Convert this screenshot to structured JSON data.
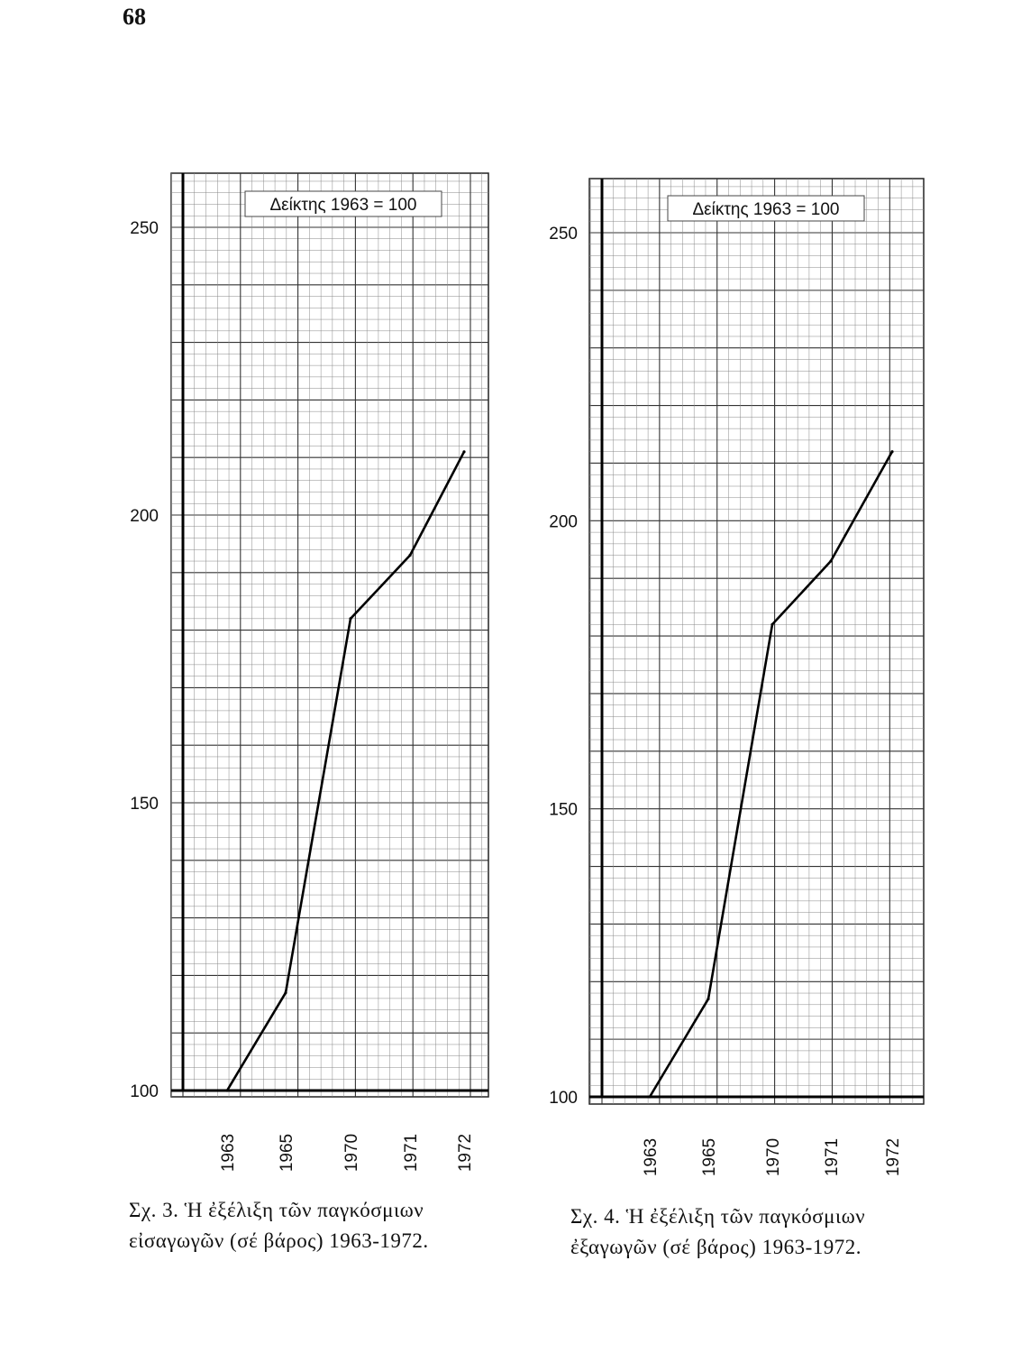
{
  "page_number": "68",
  "chart_data": [
    {
      "type": "line",
      "annotation": "Δείκτης 1963 = 100",
      "x": [
        "1963",
        "1965",
        "1970",
        "1971",
        "1972"
      ],
      "series": [
        {
          "values": [
            100,
            117,
            182,
            193,
            211
          ]
        }
      ],
      "ylim": [
        100,
        260
      ],
      "y_ticks": [
        100,
        150,
        200,
        250
      ],
      "grid": true,
      "caption_lines": [
        "Σχ. 3. Ἡ ἐξέλιξη τῶν παγκόσμιων",
        "εἰσαγωγῶν (σέ βάρος) 1963-1972."
      ]
    },
    {
      "type": "line",
      "annotation": "Δείκτης 1963 = 100",
      "x": [
        "1963",
        "1965",
        "1970",
        "1971",
        "1972"
      ],
      "series": [
        {
          "values": [
            100,
            117,
            182,
            193,
            212
          ]
        }
      ],
      "ylim": [
        100,
        260
      ],
      "y_ticks": [
        100,
        150,
        200,
        250
      ],
      "grid": true,
      "caption_lines": [
        "Σχ. 4. Ἡ ἐξέλιξη τῶν παγκόσμιων",
        "ἐξαγωγῶν (σέ βάρος) 1963-1972."
      ]
    }
  ]
}
